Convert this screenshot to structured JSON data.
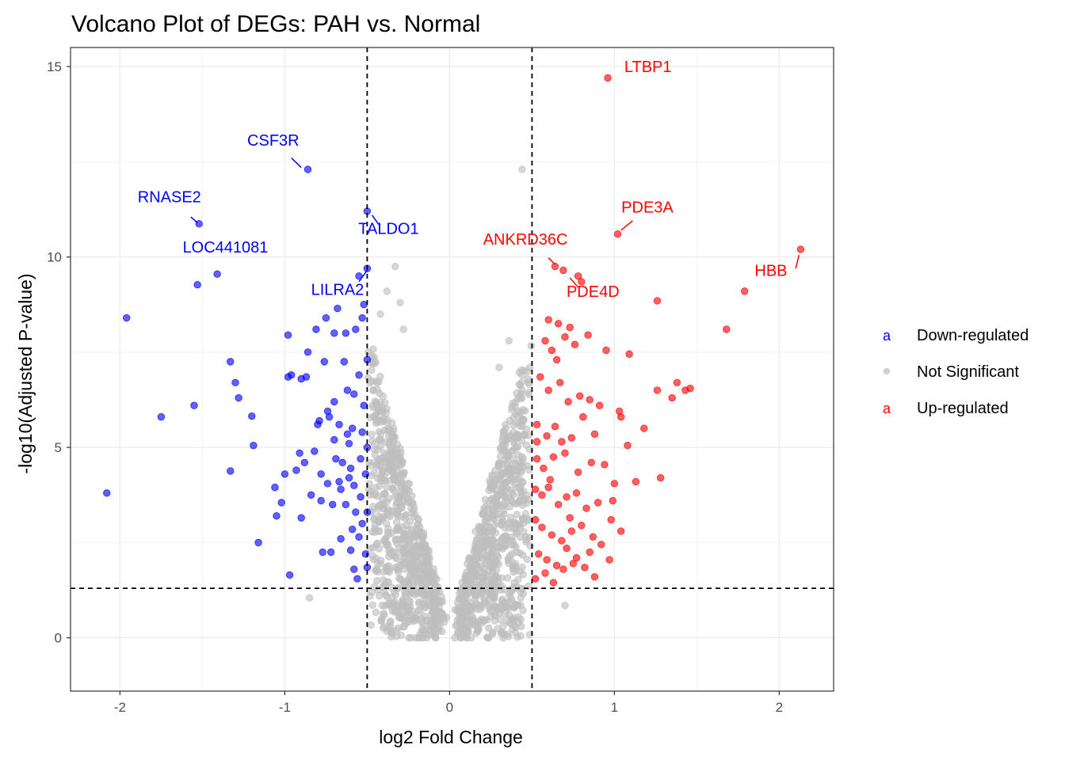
{
  "chart_data": {
    "type": "scatter",
    "title": "Volcano Plot of DEGs: PAH vs. Normal",
    "xlabel": "log2 Fold Change",
    "ylabel": "-log10(Adjusted P-value)",
    "xlim": [
      -2.3,
      2.33
    ],
    "ylim": [
      -1.4,
      15.5
    ],
    "x_ticks": [
      -2,
      -1,
      0,
      1,
      2
    ],
    "x_tick_labels": [
      "-2",
      "-1",
      "0",
      "1",
      "2"
    ],
    "y_ticks": [
      0,
      5,
      10,
      15
    ],
    "y_tick_labels": [
      "0",
      "5",
      "10",
      "15"
    ],
    "grid": true,
    "thresholds": {
      "log2fc": [
        -0.5,
        0.5
      ],
      "neg_log10_padj": 1.3
    },
    "legend": {
      "position": "right",
      "key_glyph": "a",
      "entries": [
        {
          "name": "Down-regulated",
          "color": "#0000ff"
        },
        {
          "name": "Not Significant",
          "color": "#bebebe"
        },
        {
          "name": "Up-regulated",
          "color": "#ff0000"
        }
      ]
    },
    "series": [
      {
        "name": "Down-regulated",
        "color": "#0000ff",
        "points": [
          [
            -2.08,
            3.8
          ],
          [
            -1.96,
            8.4
          ],
          [
            -1.75,
            5.8
          ],
          [
            -1.55,
            6.1
          ],
          [
            -1.53,
            9.27
          ],
          [
            -1.52,
            10.87
          ],
          [
            -1.41,
            9.55
          ],
          [
            -1.33,
            7.25
          ],
          [
            -1.33,
            4.38
          ],
          [
            -1.3,
            6.7
          ],
          [
            -1.28,
            6.3
          ],
          [
            -1.2,
            5.82
          ],
          [
            -1.19,
            5.05
          ],
          [
            -1.16,
            2.5
          ],
          [
            -1.06,
            3.95
          ],
          [
            -1.05,
            3.2
          ],
          [
            -1.02,
            3.55
          ],
          [
            -1.0,
            4.3
          ],
          [
            -0.98,
            6.85
          ],
          [
            -0.98,
            7.95
          ],
          [
            -0.97,
            1.65
          ],
          [
            -0.96,
            6.9
          ],
          [
            -0.93,
            4.4
          ],
          [
            -0.91,
            4.85
          ],
          [
            -0.9,
            3.15
          ],
          [
            -0.9,
            6.8
          ],
          [
            -0.88,
            4.6
          ],
          [
            -0.87,
            6.85
          ],
          [
            -0.86,
            7.5
          ],
          [
            -0.86,
            12.3
          ],
          [
            -0.82,
            4.9
          ],
          [
            -0.81,
            8.1
          ],
          [
            -0.8,
            5.6
          ],
          [
            -0.79,
            5.7
          ],
          [
            -0.78,
            4.3
          ],
          [
            -0.77,
            2.25
          ],
          [
            -0.76,
            7.25
          ],
          [
            -0.75,
            8.4
          ],
          [
            -0.74,
            4.05
          ],
          [
            -0.73,
            5.8
          ],
          [
            -0.72,
            2.25
          ],
          [
            -0.71,
            3.5
          ],
          [
            -0.7,
            5.2
          ],
          [
            -0.7,
            8.0
          ],
          [
            -0.69,
            4.7
          ],
          [
            -0.68,
            8.65
          ],
          [
            -0.67,
            5.6
          ],
          [
            -0.66,
            3.9
          ],
          [
            -0.65,
            4.6
          ],
          [
            -0.64,
            7.25
          ],
          [
            -0.63,
            3.5
          ],
          [
            -0.62,
            5.35
          ],
          [
            -0.61,
            4.2
          ],
          [
            -0.6,
            2.3
          ],
          [
            -0.59,
            2.85
          ],
          [
            -0.59,
            5.5
          ],
          [
            -0.58,
            1.8
          ],
          [
            -0.58,
            4.0
          ],
          [
            -0.57,
            8.1
          ],
          [
            -0.57,
            3.3
          ],
          [
            -0.56,
            1.55
          ],
          [
            -0.55,
            9.5
          ],
          [
            -0.55,
            6.9
          ],
          [
            -0.54,
            4.7
          ],
          [
            -0.53,
            5.4
          ],
          [
            -0.53,
            3.0
          ],
          [
            -0.52,
            8.75
          ],
          [
            -0.52,
            6.1
          ],
          [
            -0.51,
            4.3
          ],
          [
            -0.51,
            2.2
          ],
          [
            -0.5,
            11.2
          ],
          [
            -0.5,
            9.7
          ],
          [
            -0.5,
            7.3
          ],
          [
            -0.5,
            5.0
          ],
          [
            -0.5,
            3.3
          ],
          [
            -0.5,
            1.85
          ],
          [
            -0.6,
            4.45
          ],
          [
            -0.62,
            6.5
          ],
          [
            -0.66,
            2.6
          ],
          [
            -0.78,
            3.6
          ],
          [
            -0.84,
            3.75
          ],
          [
            -0.7,
            6.2
          ],
          [
            -0.55,
            2.65
          ],
          [
            -0.53,
            8.4
          ],
          [
            -0.67,
            4.1
          ],
          [
            -0.61,
            5.1
          ],
          [
            -0.58,
            6.4
          ],
          [
            -0.54,
            3.7
          ],
          [
            -0.74,
            5.95
          ],
          [
            -0.63,
            8.0
          ]
        ]
      },
      {
        "name": "Up-regulated",
        "color": "#ff0000",
        "points": [
          [
            0.96,
            14.7
          ],
          [
            1.02,
            10.6
          ],
          [
            2.13,
            10.2
          ],
          [
            0.64,
            9.75
          ],
          [
            0.69,
            9.65
          ],
          [
            0.78,
            9.5
          ],
          [
            0.8,
            9.35
          ],
          [
            1.26,
            8.85
          ],
          [
            1.79,
            9.1
          ],
          [
            1.68,
            8.1
          ],
          [
            0.6,
            8.35
          ],
          [
            0.66,
            8.25
          ],
          [
            0.73,
            8.15
          ],
          [
            0.58,
            7.8
          ],
          [
            0.62,
            7.55
          ],
          [
            0.65,
            7.3
          ],
          [
            0.7,
            7.9
          ],
          [
            0.76,
            7.7
          ],
          [
            0.84,
            7.95
          ],
          [
            0.95,
            7.55
          ],
          [
            1.09,
            7.45
          ],
          [
            0.55,
            6.85
          ],
          [
            0.6,
            6.5
          ],
          [
            0.67,
            6.7
          ],
          [
            0.72,
            6.2
          ],
          [
            0.79,
            6.35
          ],
          [
            0.85,
            6.25
          ],
          [
            0.91,
            6.1
          ],
          [
            1.03,
            5.95
          ],
          [
            1.26,
            6.5
          ],
          [
            1.38,
            6.7
          ],
          [
            1.43,
            6.5
          ],
          [
            1.46,
            6.55
          ],
          [
            1.35,
            6.3
          ],
          [
            0.53,
            5.6
          ],
          [
            0.59,
            5.3
          ],
          [
            0.64,
            5.55
          ],
          [
            0.68,
            5.15
          ],
          [
            0.74,
            5.25
          ],
          [
            0.81,
            5.8
          ],
          [
            0.88,
            5.35
          ],
          [
            1.04,
            5.8
          ],
          [
            1.18,
            5.5
          ],
          [
            0.53,
            4.7
          ],
          [
            0.57,
            4.45
          ],
          [
            0.63,
            4.75
          ],
          [
            0.7,
            4.85
          ],
          [
            0.78,
            4.35
          ],
          [
            0.86,
            4.6
          ],
          [
            0.94,
            4.55
          ],
          [
            1.08,
            5.05
          ],
          [
            1.28,
            4.2
          ],
          [
            1.13,
            4.1
          ],
          [
            0.52,
            3.9
          ],
          [
            0.56,
            3.75
          ],
          [
            0.6,
            3.95
          ],
          [
            0.66,
            3.5
          ],
          [
            0.71,
            3.7
          ],
          [
            0.77,
            3.8
          ],
          [
            0.83,
            3.4
          ],
          [
            0.9,
            3.55
          ],
          [
            0.98,
            3.1
          ],
          [
            1.0,
            4.05
          ],
          [
            0.52,
            3.1
          ],
          [
            0.56,
            2.9
          ],
          [
            0.62,
            2.7
          ],
          [
            0.68,
            2.55
          ],
          [
            0.74,
            2.8
          ],
          [
            0.8,
            2.95
          ],
          [
            0.87,
            2.65
          ],
          [
            0.92,
            2.45
          ],
          [
            1.04,
            2.8
          ],
          [
            0.54,
            2.2
          ],
          [
            0.59,
            2.05
          ],
          [
            0.65,
            1.9
          ],
          [
            0.71,
            2.35
          ],
          [
            0.77,
            2.1
          ],
          [
            0.85,
            2.25
          ],
          [
            0.97,
            2.05
          ],
          [
            0.52,
            1.55
          ],
          [
            0.58,
            1.7
          ],
          [
            0.63,
            1.45
          ],
          [
            0.69,
            1.8
          ],
          [
            0.75,
            1.95
          ],
          [
            0.82,
            1.85
          ],
          [
            0.53,
            5.15
          ],
          [
            0.61,
            4.15
          ],
          [
            0.73,
            3.15
          ],
          [
            0.99,
            3.6
          ],
          [
            0.88,
            1.6
          ]
        ]
      },
      {
        "name": "Not Significant",
        "color": "#bebebe",
        "highlights": [
          [
            0.44,
            12.3
          ],
          [
            -0.33,
            9.75
          ],
          [
            -0.38,
            9.1
          ],
          [
            -0.3,
            8.8
          ],
          [
            -0.28,
            8.1
          ],
          [
            -0.42,
            8.5
          ],
          [
            -0.85,
            1.05
          ],
          [
            0.7,
            0.85
          ],
          [
            -0.47,
            1.2
          ],
          [
            0.36,
            7.8
          ],
          [
            0.3,
            7.1
          ]
        ],
        "cloud": {
          "x_inner": 0.08,
          "x_outer": 0.5,
          "y_range": [
            0,
            7.8
          ]
        }
      }
    ],
    "annotations": [
      {
        "label": "LTBP1",
        "color": "#ff0000"
      },
      {
        "label": "CSF3R",
        "color": "#0000ff"
      },
      {
        "label": "RNASE2",
        "color": "#0000ff"
      },
      {
        "label": "TALDO1",
        "color": "#0000ff"
      },
      {
        "label": "PDE3A",
        "color": "#ff0000"
      },
      {
        "label": "LOC441081",
        "color": "#0000ff"
      },
      {
        "label": "ANKRD36C",
        "color": "#ff0000"
      },
      {
        "label": "HBB",
        "color": "#ff0000"
      },
      {
        "label": "LILRA2",
        "color": "#0000ff"
      },
      {
        "label": "PDE4D",
        "color": "#ff0000"
      }
    ]
  }
}
